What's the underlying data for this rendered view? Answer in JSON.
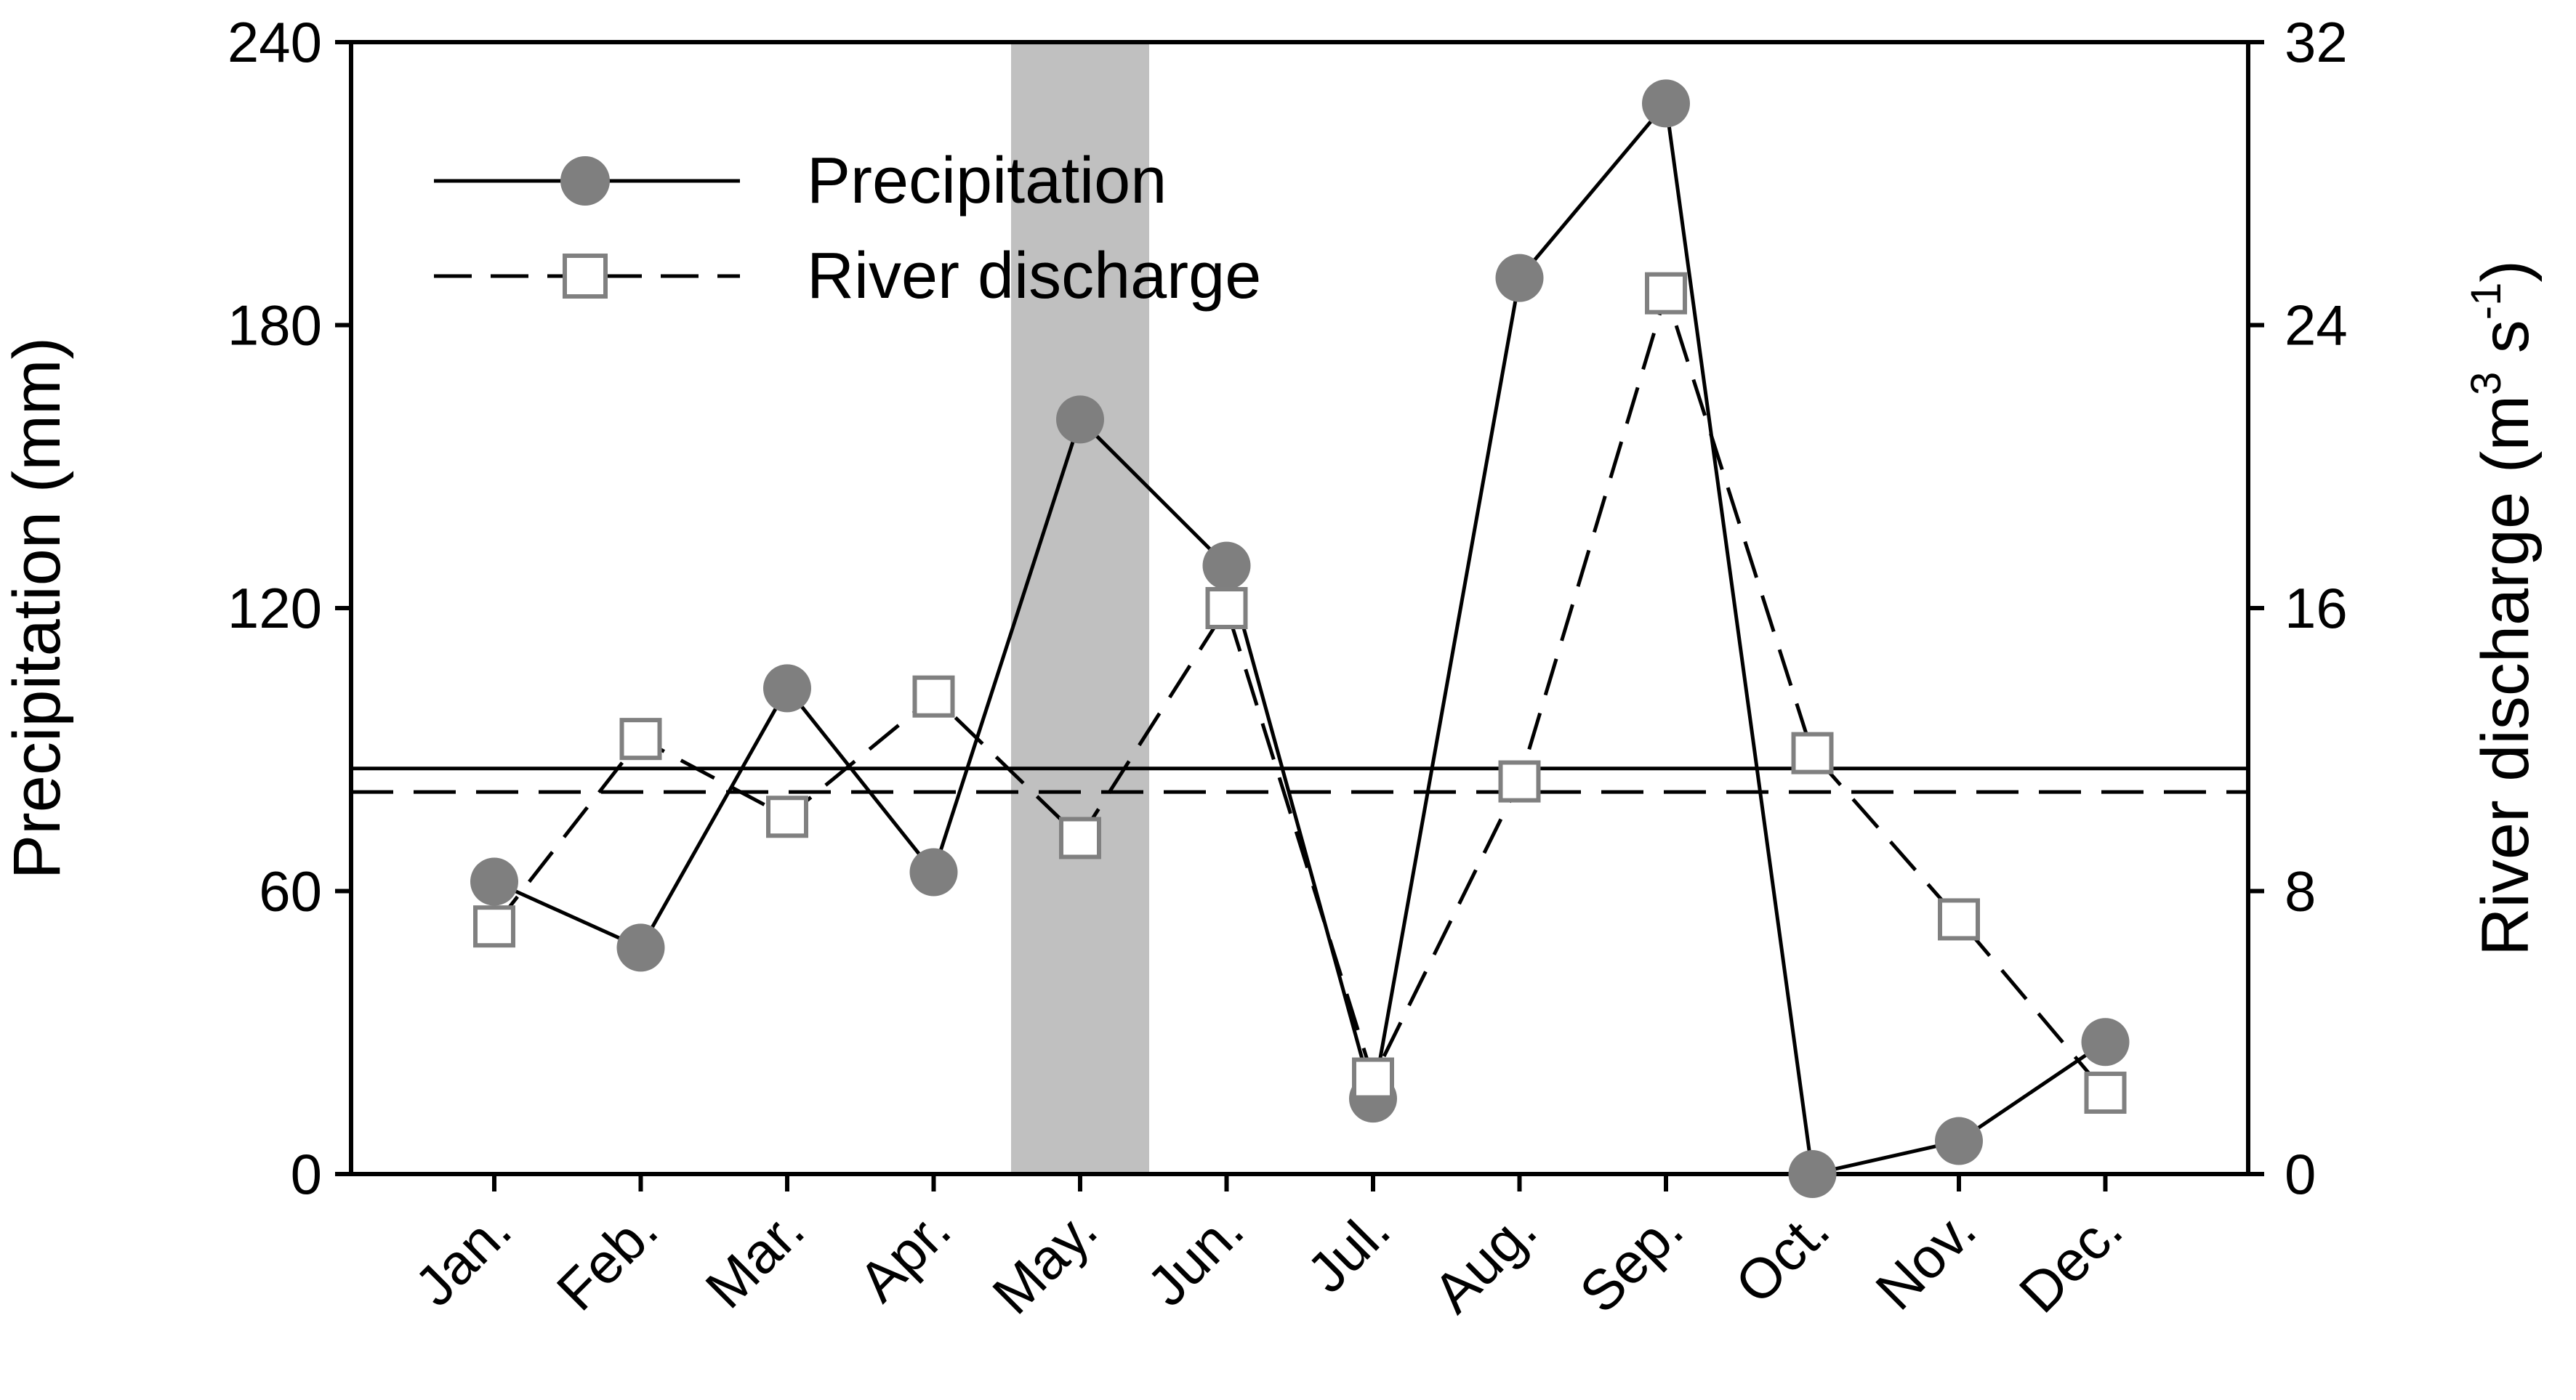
{
  "chart_data": {
    "type": "line",
    "categories": [
      "Jan.",
      "Feb.",
      "Mar.",
      "Apr.",
      "May.",
      "Jun.",
      "Jul.",
      "Aug.",
      "Sep.",
      "Oct.",
      "Nov.",
      "Dec."
    ],
    "series": [
      {
        "name": "Precipitation",
        "axis": "left",
        "values": [
          62,
          48,
          103,
          64,
          160,
          129,
          16,
          190,
          227,
          0,
          7,
          28
        ],
        "color": "#7f7f7f",
        "marker": "filled-circle",
        "line_style": "solid",
        "mean_line": 86
      },
      {
        "name": "River discharge",
        "axis": "right",
        "values": [
          7,
          12.3,
          10.1,
          13.5,
          9.5,
          16,
          2.7,
          11.1,
          24.9,
          11.9,
          7.2,
          2.3
        ],
        "color": "#808080",
        "marker": "open-square",
        "line_style": "dashed",
        "mean_line": 10.8
      }
    ],
    "ylabel": "Precipitation (mm)",
    "y2label_base": "River discharge (m",
    "y2label_sup1": "3",
    "y2label_mid": " s",
    "y2label_sup2": "-1",
    "y2label_end": ")",
    "ylim": [
      0,
      240
    ],
    "y2lim": [
      0,
      32
    ],
    "yticks": [
      "0",
      "60",
      "120",
      "180",
      "240"
    ],
    "y2ticks": [
      "0",
      "8",
      "16",
      "24",
      "32"
    ],
    "highlight_category": "May.",
    "highlight_color": "#c0c0c0",
    "grid": false,
    "legend_position": "top-left"
  }
}
